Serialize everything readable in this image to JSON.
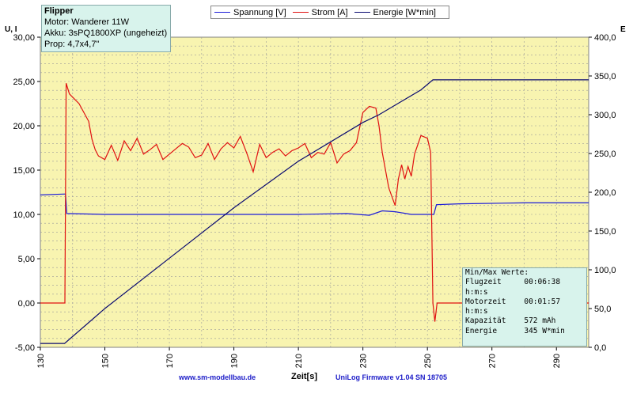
{
  "info": {
    "title": "Flipper",
    "line1": "Motor: Wanderer 11W",
    "line2": "Akku: 3sPQ1800XP (ungeheizt)",
    "line3": "Prop: 4,7x4,7\""
  },
  "legend": {
    "spannung": "Spannung [V]",
    "strom": "Strom [A]",
    "energie": "Energie [W*min]"
  },
  "colors": {
    "spannung": "#1c1cd8",
    "strom": "#e01010",
    "energie": "#0a0a70",
    "plot_bg": "#f8f4b0"
  },
  "ylabel_left": "U, I",
  "ylabel_right": "E",
  "xlabel": "Zeit[s]",
  "footer": {
    "left": "www.sm-modellbau.de",
    "right": "UniLog Firmware v1.04 SN 18705"
  },
  "minmax": {
    "line1": "Min/Max Werte:",
    "line2": "Flugzeit     00:06:38",
    "line3": "h:m:s",
    "line4": "Motorzeit    00:01:57",
    "line5": "h:m:s",
    "line6": "Kapazität    572 mAh",
    "line7": "Energie      345 W*min"
  },
  "chart_data": {
    "type": "line",
    "x_ticks": [
      130,
      150,
      170,
      190,
      210,
      230,
      250,
      270,
      290
    ],
    "xlim": [
      130,
      300
    ],
    "y_left_ticks": [
      "-5,00",
      "0,00",
      "5,00",
      "10,00",
      "15,00",
      "20,00",
      "25,00",
      "30,00"
    ],
    "ylim_left": [
      -5,
      30
    ],
    "y_right_ticks": [
      "0,0",
      "50,0",
      "100,0",
      "150,0",
      "200,0",
      "250,0",
      "300,0",
      "350,0",
      "400,0"
    ],
    "ylim_right": [
      0,
      400
    ],
    "grid": true,
    "series": [
      {
        "name": "Spannung [V]",
        "axis": "left",
        "x": [
          130,
          137.8,
          138.2,
          150,
          170,
          190,
          210,
          225,
          232,
          236,
          240,
          245,
          252,
          252.8,
          260,
          280,
          300
        ],
        "y": [
          12.2,
          12.3,
          10.1,
          10.0,
          10.0,
          10.0,
          10.0,
          10.1,
          9.9,
          10.4,
          10.3,
          10.0,
          10.0,
          11.1,
          11.2,
          11.3,
          11.3
        ]
      },
      {
        "name": "Strom [A]",
        "axis": "left",
        "x": [
          130,
          137.6,
          138,
          139,
          142,
          145,
          146,
          147,
          148,
          150,
          152,
          154,
          156,
          158,
          160,
          162,
          164,
          166,
          168,
          170,
          172,
          174,
          176,
          178,
          180,
          182,
          184,
          186,
          188,
          190,
          192,
          194,
          196,
          198,
          200,
          202,
          204,
          206,
          208,
          210,
          212,
          214,
          216,
          218,
          220,
          222,
          224,
          226,
          228,
          230,
          232,
          234,
          235,
          236,
          238,
          240,
          241,
          242,
          243,
          244,
          245,
          246,
          248,
          250,
          251,
          251.7,
          252.3,
          253,
          260,
          280,
          300
        ],
        "y": [
          0,
          0,
          24.8,
          23.6,
          22.5,
          20.5,
          18.5,
          17.3,
          16.6,
          16.2,
          17.8,
          16.1,
          18.3,
          17.2,
          18.6,
          16.8,
          17.3,
          17.9,
          16.2,
          16.8,
          17.4,
          18.0,
          17.6,
          16.4,
          16.7,
          18.0,
          16.2,
          17.4,
          18.1,
          17.5,
          18.8,
          16.9,
          14.8,
          17.9,
          16.4,
          17.0,
          17.4,
          16.6,
          17.2,
          17.5,
          18.0,
          16.4,
          17.0,
          16.8,
          18.1,
          15.8,
          16.8,
          17.2,
          18.1,
          21.5,
          22.2,
          22.0,
          20.0,
          17.0,
          13.0,
          11.0,
          14.0,
          15.6,
          14.0,
          15.4,
          14.3,
          16.8,
          18.9,
          18.6,
          17.0,
          0,
          -2.1,
          0,
          0,
          0,
          0
        ]
      },
      {
        "name": "Energie [W*min]",
        "axis": "right",
        "x": [
          130,
          137.5,
          150,
          170,
          190,
          210,
          230,
          235,
          248,
          251.7,
          300
        ],
        "y": [
          5,
          5,
          50,
          115,
          180,
          240,
          290,
          300,
          332,
          345,
          345
        ]
      }
    ]
  }
}
